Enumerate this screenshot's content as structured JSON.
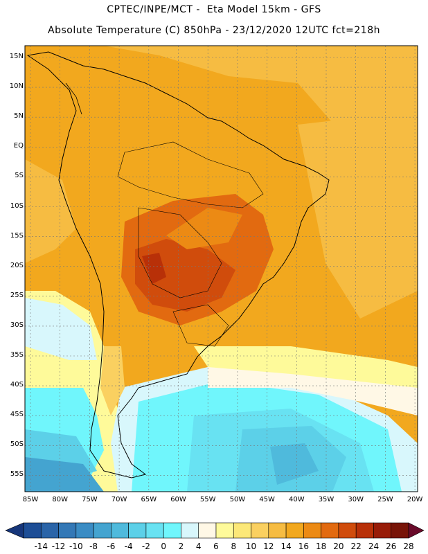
{
  "header": {
    "line1": "CPTEC/INPE/MCT -  Eta Model 15km - GFS",
    "line2": "Absolute Temperature (C) 850hPa - 23/12/2020 12UTC fct=218h"
  },
  "map": {
    "lat_labels": [
      "15N",
      "10N",
      "5N",
      "EQ",
      "5S",
      "10S",
      "15S",
      "20S",
      "25S",
      "30S",
      "35S",
      "40S",
      "45S",
      "50S",
      "55S"
    ],
    "lon_labels": [
      "85W",
      "80W",
      "75W",
      "70W",
      "65W",
      "60W",
      "55W",
      "50W",
      "45W",
      "40W",
      "35W",
      "30W",
      "25W",
      "20W"
    ]
  },
  "colorbar": {
    "labels": [
      "-14",
      "-12",
      "-10",
      "-8",
      "-6",
      "-4",
      "-2",
      "0",
      "2",
      "4",
      "6",
      "8",
      "10",
      "12",
      "14",
      "16",
      "18",
      "20",
      "22",
      "24",
      "26",
      "28"
    ],
    "colors": [
      "#1d4e96",
      "#2a64a8",
      "#3378b6",
      "#3a8cc4",
      "#44a4d0",
      "#4fbadc",
      "#5cd0e8",
      "#68e2f2",
      "#70f6fc",
      "#d8f7fc",
      "#fff8e6",
      "#fefa9a",
      "#fce878",
      "#fad060",
      "#f6bc42",
      "#f2a81e",
      "#ec8a14",
      "#e26a10",
      "#d04c0c",
      "#b83008",
      "#981c08",
      "#781408"
    ],
    "under_color": "#16367a",
    "over_color": "#6a0a2a"
  }
}
